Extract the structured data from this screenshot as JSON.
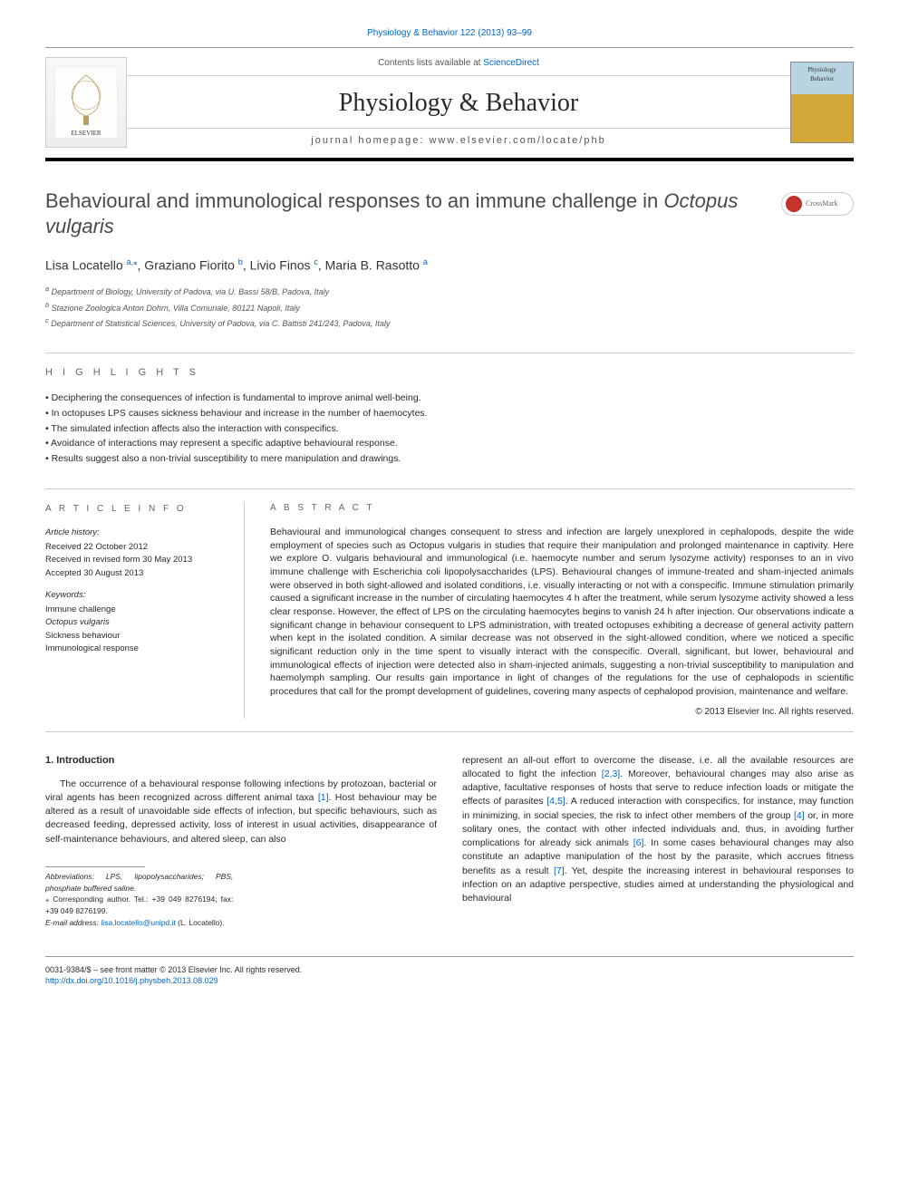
{
  "top_link": "Physiology & Behavior 122 (2013) 93–99",
  "header": {
    "contents_prefix": "Contents lists available at ",
    "contents_link": "ScienceDirect",
    "journal": "Physiology & Behavior",
    "homepage": "journal homepage: www.elsevier.com/locate/phb",
    "cover_line1": "Physiology",
    "cover_line2": "Behavior",
    "elsevier_label": "ELSEVIER"
  },
  "crossmark": "CrossMark",
  "title_plain": "Behavioural and immunological responses to an immune challenge in ",
  "title_italic": "Octopus vulgaris",
  "authors_html": "Lisa Locatello |a,*|, Graziano Fiorito |b|, Livio Finos |c|, Maria B. Rasotto |a|",
  "authors": [
    {
      "name": "Lisa Locatello ",
      "sup": "a,⁎"
    },
    {
      "name": ", Graziano Fiorito ",
      "sup": "b"
    },
    {
      "name": ", Livio Finos ",
      "sup": "c"
    },
    {
      "name": ", Maria B. Rasotto ",
      "sup": "a"
    }
  ],
  "affiliations": [
    "a Department of Biology, University of Padova, via U. Bassi 58/B, Padova, Italy",
    "b Stazione Zoologica Anton Dohrn, Villa Comunale, 80121 Napoli, Italy",
    "c Department of Statistical Sciences, University of Padova, via C. Battisti 241/243, Padova, Italy"
  ],
  "highlights_label": "H I G H L I G H T S",
  "highlights": [
    "Deciphering the consequences of infection is fundamental to improve animal well-being.",
    "In octopuses LPS causes sickness behaviour and increase in the number of haemocytes.",
    "The simulated infection affects also the interaction with conspecifics.",
    "Avoidance of interactions may represent a specific adaptive behavioural response.",
    "Results suggest also a non-trivial susceptibility to mere manipulation and drawings."
  ],
  "article_info_label": "A R T I C L E   I N F O",
  "abstract_label": "A B S T R A C T",
  "history_head": "Article history:",
  "history": [
    "Received 22 October 2012",
    "Received in revised form 30 May 2013",
    "Accepted 30 August 2013"
  ],
  "keywords_head": "Keywords:",
  "keywords": [
    "Immune challenge",
    "Octopus vulgaris",
    "Sickness behaviour",
    "Immunological response"
  ],
  "abstract": "Behavioural and immunological changes consequent to stress and infection are largely unexplored in cephalopods, despite the wide employment of species such as Octopus vulgaris in studies that require their manipulation and prolonged maintenance in captivity. Here we explore O. vulgaris behavioural and immunological (i.e. haemocyte number and serum lysozyme activity) responses to an in vivo immune challenge with Escherichia coli lipopolysaccharides (LPS). Behavioural changes of immune-treated and sham-injected animals were observed in both sight-allowed and isolated conditions, i.e. visually interacting or not with a conspecific. Immune stimulation primarily caused a significant increase in the number of circulating haemocytes 4 h after the treatment, while serum lysozyme activity showed a less clear response. However, the effect of LPS on the circulating haemocytes begins to vanish 24 h after injection. Our observations indicate a significant change in behaviour consequent to LPS administration, with treated octopuses exhibiting a decrease of general activity pattern when kept in the isolated condition. A similar decrease was not observed in the sight-allowed condition, where we noticed a specific significant reduction only in the time spent to visually interact with the conspecific. Overall, significant, but lower, behavioural and immunological effects of injection were detected also in sham-injected animals, suggesting a non-trivial susceptibility to manipulation and haemolymph sampling. Our results gain importance in light of changes of the regulations for the use of cephalopods in scientific procedures that call for the prompt development of guidelines, covering many aspects of cephalopod provision, maintenance and welfare.",
  "copyright": "© 2013 Elsevier Inc. All rights reserved.",
  "intro_heading": "1. Introduction",
  "intro_col1": "The occurrence of a behavioural response following infections by protozoan, bacterial or viral agents has been recognized across different animal taxa [1]. Host behaviour may be altered as a result of unavoidable side effects of infection, but specific behaviours, such as decreased feeding, depressed activity, loss of interest in usual activities, disappearance of self-maintenance behaviours, and altered sleep, can also",
  "intro_col2": "represent an all-out effort to overcome the disease, i.e. all the available resources are allocated to fight the infection [2,3]. Moreover, behavioural changes may also arise as adaptive, facultative responses of hosts that serve to reduce infection loads or mitigate the effects of parasites [4,5]. A reduced interaction with conspecifics, for instance, may function in minimizing, in social species, the risk to infect other members of the group [4] or, in more solitary ones, the contact with other infected individuals and, thus, in avoiding further complications for already sick animals [6]. In some cases behavioural changes may also constitute an adaptive manipulation of the host by the parasite, which accrues fitness benefits as a result [7]. Yet, despite the increasing interest in behavioural responses to infection on an adaptive perspective, studies aimed at understanding the physiological and behavioural",
  "footnotes": {
    "abbrev": "Abbreviations: LPS, lipopolysaccharides; PBS, phosphate buffered saline.",
    "corresp": "⁎ Corresponding author. Tel.: +39 049 8276194; fax: +39 049 8276199.",
    "email_label": "E-mail address: ",
    "email": "lisa.locatello@unipd.it",
    "email_suffix": " (L. Locatello)."
  },
  "footer": {
    "left1": "0031-9384/$ – see front matter © 2013 Elsevier Inc. All rights reserved.",
    "doi": "http://dx.doi.org/10.1016/j.physbeh.2013.08.029"
  },
  "colors": {
    "link": "#0066cc",
    "text": "#2a2a2a",
    "rule": "#999999"
  }
}
